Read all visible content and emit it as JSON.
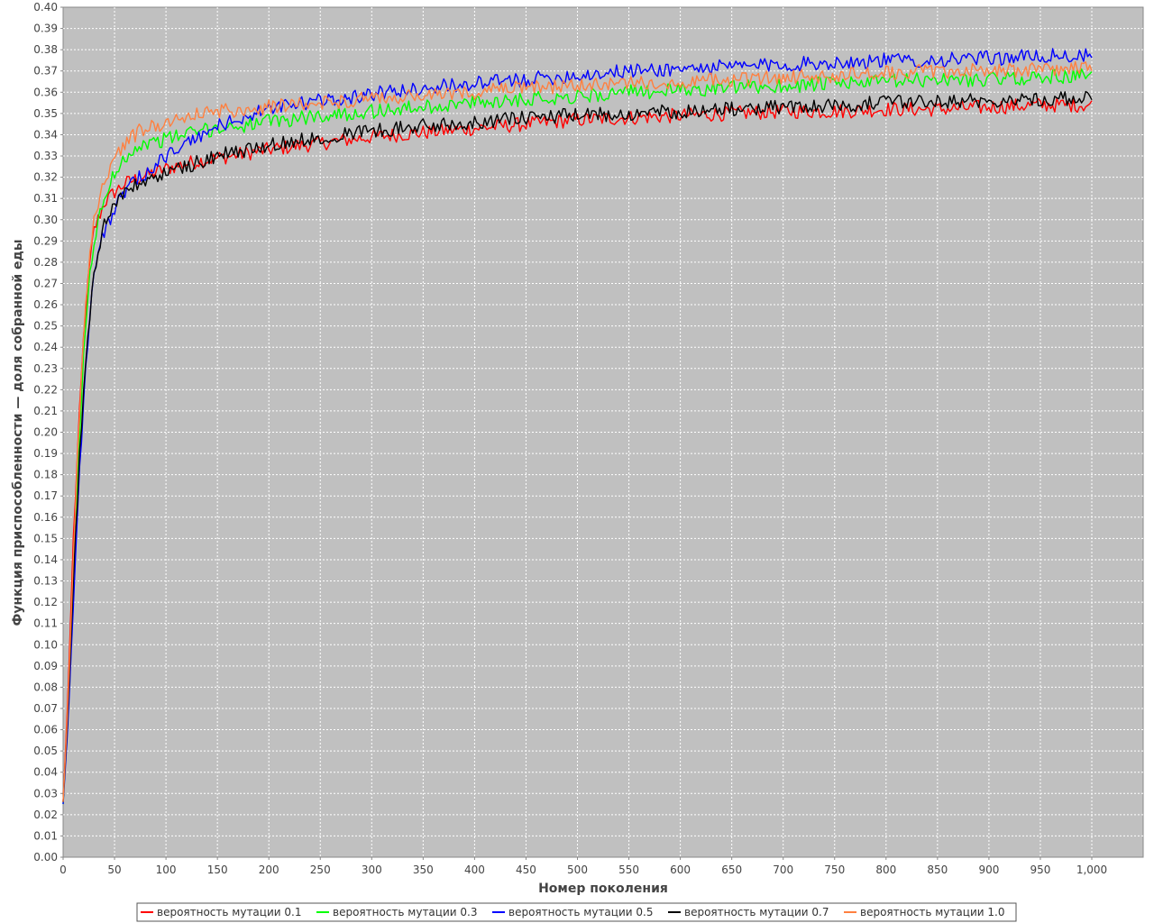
{
  "chart_data": {
    "type": "line",
    "title": "",
    "xlabel": "Номер поколения",
    "ylabel": "Функция приспособленности — доля собранной еды",
    "xlim": [
      0,
      1000
    ],
    "ylim": [
      0.0,
      0.4
    ],
    "x_ticks": [
      "0",
      "50",
      "100",
      "150",
      "200",
      "250",
      "300",
      "350",
      "400",
      "450",
      "500",
      "550",
      "600",
      "650",
      "700",
      "750",
      "800",
      "850",
      "900",
      "950",
      "1,000"
    ],
    "y_ticks": [
      "0.00",
      "0.01",
      "0.02",
      "0.03",
      "0.04",
      "0.05",
      "0.06",
      "0.07",
      "0.08",
      "0.09",
      "0.10",
      "0.11",
      "0.12",
      "0.13",
      "0.14",
      "0.15",
      "0.16",
      "0.17",
      "0.18",
      "0.19",
      "0.20",
      "0.21",
      "0.22",
      "0.23",
      "0.24",
      "0.25",
      "0.26",
      "0.27",
      "0.28",
      "0.29",
      "0.30",
      "0.31",
      "0.32",
      "0.33",
      "0.34",
      "0.35",
      "0.36",
      "0.37",
      "0.38",
      "0.39",
      "0.40"
    ],
    "grid": true,
    "plot_background": "#c0c0c0",
    "legend_position": "bottom",
    "x": [
      0,
      5,
      10,
      15,
      20,
      25,
      30,
      40,
      50,
      60,
      75,
      100,
      125,
      150,
      200,
      250,
      300,
      350,
      400,
      450,
      500,
      550,
      600,
      650,
      700,
      750,
      800,
      850,
      900,
      950,
      1000
    ],
    "series": [
      {
        "name": "вероятность мутации 0.1",
        "color": "#ff0000",
        "values": [
          0.026,
          0.08,
          0.15,
          0.2,
          0.245,
          0.275,
          0.295,
          0.308,
          0.313,
          0.317,
          0.32,
          0.324,
          0.327,
          0.329,
          0.333,
          0.336,
          0.339,
          0.341,
          0.343,
          0.345,
          0.347,
          0.348,
          0.349,
          0.35,
          0.351,
          0.351,
          0.352,
          0.352,
          0.353,
          0.354,
          0.354
        ]
      },
      {
        "name": "вероятность мутации 0.3",
        "color": "#00ff00",
        "values": [
          0.025,
          0.07,
          0.13,
          0.19,
          0.235,
          0.27,
          0.29,
          0.31,
          0.322,
          0.33,
          0.335,
          0.338,
          0.341,
          0.343,
          0.346,
          0.349,
          0.351,
          0.353,
          0.355,
          0.357,
          0.358,
          0.36,
          0.361,
          0.362,
          0.363,
          0.364,
          0.365,
          0.366,
          0.366,
          0.367,
          0.368
        ]
      },
      {
        "name": "вероятность мутации 0.5",
        "color": "#0000ff",
        "values": [
          0.025,
          0.065,
          0.12,
          0.175,
          0.215,
          0.25,
          0.275,
          0.295,
          0.305,
          0.313,
          0.32,
          0.33,
          0.337,
          0.344,
          0.352,
          0.356,
          0.359,
          0.362,
          0.364,
          0.366,
          0.368,
          0.37,
          0.371,
          0.372,
          0.373,
          0.374,
          0.375,
          0.375,
          0.376,
          0.377,
          0.377
        ]
      },
      {
        "name": "вероятность мутации 0.7",
        "color": "#000000",
        "values": [
          0.026,
          0.07,
          0.13,
          0.18,
          0.22,
          0.25,
          0.275,
          0.298,
          0.308,
          0.313,
          0.317,
          0.322,
          0.326,
          0.33,
          0.335,
          0.339,
          0.342,
          0.344,
          0.346,
          0.348,
          0.349,
          0.35,
          0.351,
          0.352,
          0.353,
          0.354,
          0.355,
          0.356,
          0.356,
          0.357,
          0.357
        ]
      },
      {
        "name": "вероятность мутации 1.0",
        "color": "#ff8040",
        "values": [
          0.026,
          0.075,
          0.14,
          0.2,
          0.245,
          0.28,
          0.3,
          0.318,
          0.329,
          0.336,
          0.342,
          0.346,
          0.349,
          0.351,
          0.353,
          0.355,
          0.357,
          0.358,
          0.36,
          0.362,
          0.363,
          0.364,
          0.365,
          0.366,
          0.367,
          0.368,
          0.369,
          0.37,
          0.37,
          0.371,
          0.371
        ]
      }
    ],
    "legend": [
      "вероятность мутации 0.1",
      "вероятность мутации 0.3",
      "вероятность мутации 0.5",
      "вероятность мутации 0.7",
      "вероятность мутации 1.0"
    ]
  }
}
